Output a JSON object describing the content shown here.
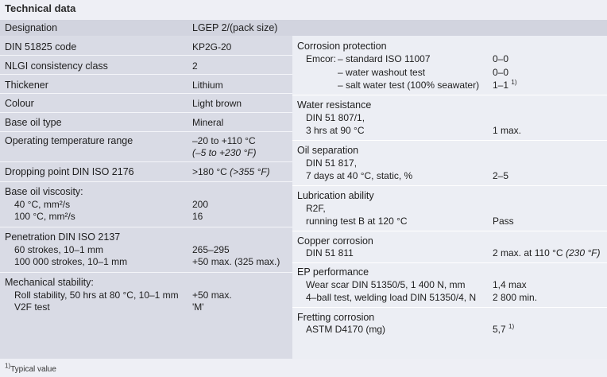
{
  "title": "Technical data",
  "header": {
    "designation": "Designation",
    "product": "LGEP 2/(pack size)"
  },
  "left": {
    "din_code": {
      "label": "DIN 51825 code",
      "value": "KP2G-20"
    },
    "nlgi": {
      "label": "NLGI consistency class",
      "value": "2"
    },
    "thickener": {
      "label": "Thickener",
      "value": "Lithium"
    },
    "colour": {
      "label": "Colour",
      "value": "Light brown"
    },
    "base_oil": {
      "label": "Base oil type",
      "value": "Mineral"
    },
    "op_temp": {
      "label": "Operating temperature range",
      "value": "–20 to +110 °C",
      "value2": "(–5 to +230 °F)"
    },
    "dropping": {
      "label": "Dropping point DIN ISO 2176",
      "value": ">180 °C",
      "value_f": "(>355 °F)"
    },
    "viscosity": {
      "label": "Base oil viscosity:",
      "r1_label": "40 °C, mm²/s",
      "r1_value": "200",
      "r2_label": "100 °C, mm²/s",
      "r2_value": "16"
    },
    "penetration": {
      "label": "Penetration DIN ISO 2137",
      "r1_label": "60 strokes, 10–1 mm",
      "r1_value": "265–295",
      "r2_label": "100 000 strokes, 10–1 mm",
      "r2_value": "+50 max. (325 max.)"
    },
    "mech": {
      "label": "Mechanical stability:",
      "r1_label": "Roll stability, 50 hrs at 80 °C, 10–1 mm",
      "r1_value": "+50 max.",
      "r2_label": "V2F test",
      "r2_value": "'M'"
    }
  },
  "right": {
    "corrosion": {
      "label": "Corrosion protection",
      "emcor": "Emcor:",
      "r1_label": "– standard ISO 11007",
      "r1_value": "0–0",
      "r2_label": "– water washout test",
      "r2_value": "0–0",
      "r3_label": "– salt water test (100% seawater)",
      "r3_value": "1–1",
      "r3_sup": "1)"
    },
    "water": {
      "label": "Water resistance",
      "r1": "DIN 51 807/1,",
      "r2": "3 hrs at 90 °C",
      "value": "1 max."
    },
    "oil_sep": {
      "label": "Oil separation",
      "r1": "DIN 51 817,",
      "r2": "7 days at 40 °C, static, %",
      "value": "2–5"
    },
    "lubrication": {
      "label": "Lubrication ability",
      "r1": "R2F,",
      "r2": "running test B at 120 °C",
      "value": "Pass"
    },
    "copper": {
      "label": "Copper corrosion",
      "r1": "DIN 51 811",
      "value": "2 max. at 110 °C",
      "value_f": "(230 °F)"
    },
    "ep": {
      "label": "EP performance",
      "r1_label": "Wear scar DIN 51350/5, 1 400 N, mm",
      "r1_value": "1,4 max",
      "r2_label": "4–ball test, welding load DIN 51350/4, N",
      "r2_value": "2 800 min."
    },
    "fretting": {
      "label": "Fretting corrosion",
      "r1_label": "ASTM D4170 (mg)",
      "r1_value": "5,7",
      "r1_sup": "1)"
    }
  },
  "footnote": {
    "sup": "1)",
    "text": "Typical value"
  }
}
